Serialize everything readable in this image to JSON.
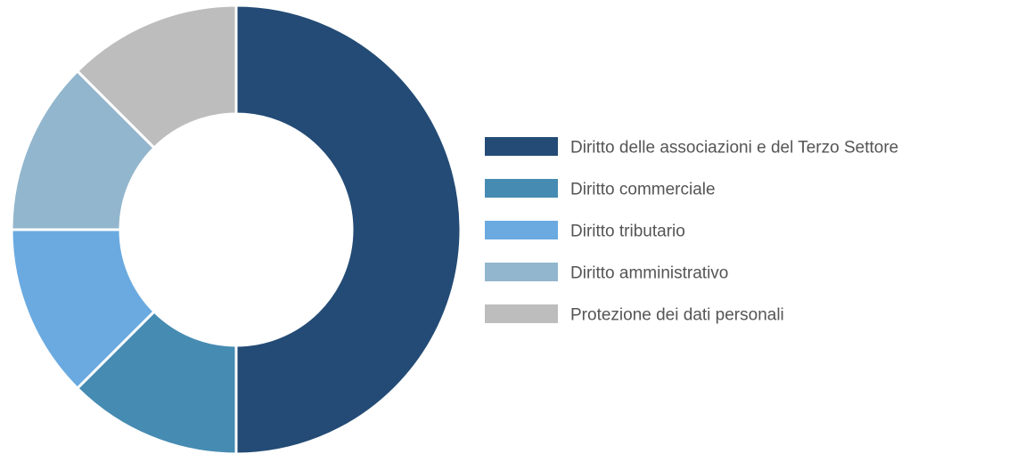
{
  "chart_data": {
    "type": "pie",
    "donut": true,
    "categories": [
      "Diritto delle associazioni e del Terzo Settore",
      "Diritto commerciale",
      "Diritto tributario",
      "Diritto amministrativo",
      "Protezione dei dati personali"
    ],
    "values": [
      50,
      12.5,
      12.5,
      12.5,
      12.5
    ],
    "colors": [
      "#234B75",
      "#468BB2",
      "#6AAAE0",
      "#92B6CD",
      "#BDBDBD"
    ],
    "legend_position": "right",
    "title": ""
  }
}
